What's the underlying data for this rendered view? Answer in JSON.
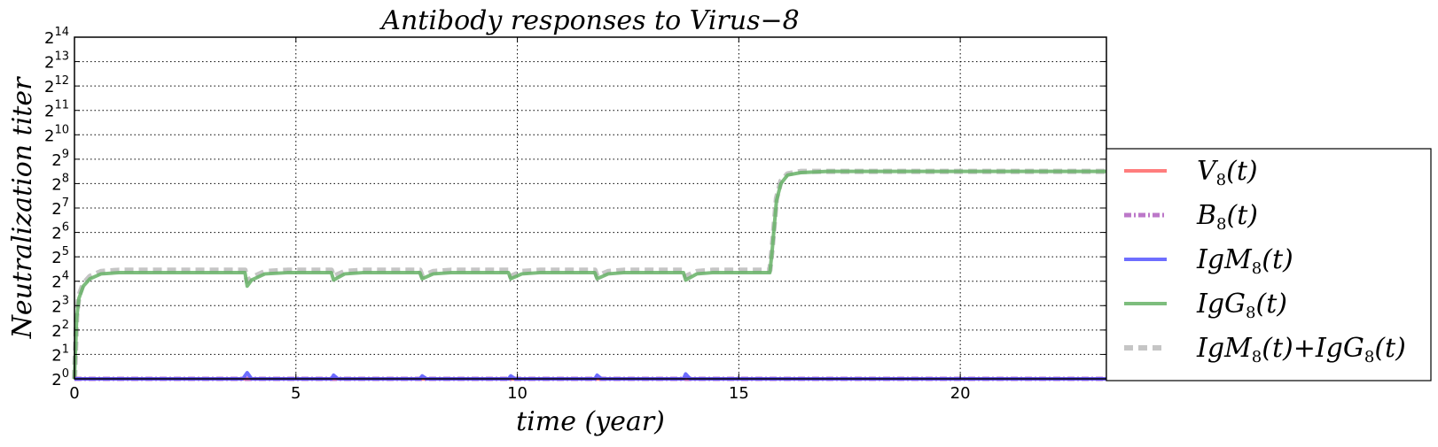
{
  "chart_data": {
    "type": "line",
    "title": "Antibody responses to Virus−8",
    "xlabel": "time (year)",
    "ylabel": "Neutralization  titer",
    "x_range": [
      0,
      23.3
    ],
    "y_scale": "log2",
    "y_range_exponent": [
      0,
      14
    ],
    "x_ticks": [
      "0",
      "5",
      "10",
      "15",
      "20"
    ],
    "y_ticks": [
      "2^0",
      "2^1",
      "2^2",
      "2^3",
      "2^4",
      "2^5",
      "2^6",
      "2^7",
      "2^8",
      "2^9",
      "2^10",
      "2^11",
      "2^12",
      "2^13",
      "2^14"
    ],
    "grid": true,
    "legend_position": "right, outside plot",
    "series": [
      {
        "name": "V8(t)",
        "color": "#ff6666",
        "style": "solid",
        "points_log2": [
          [
            0,
            0
          ],
          [
            23.3,
            0
          ]
        ]
      },
      {
        "name": "B8(t)",
        "color": "#b060c0",
        "style": "dashdot",
        "points_log2": [
          [
            0,
            0
          ],
          [
            23.3,
            0
          ]
        ]
      },
      {
        "name": "IgM8(t)",
        "color": "#5555ff",
        "style": "solid",
        "points_log2": [
          [
            0,
            0
          ],
          [
            3.8,
            0
          ],
          [
            3.9,
            0.25
          ],
          [
            4.0,
            0
          ],
          [
            5.8,
            0
          ],
          [
            5.85,
            0.15
          ],
          [
            5.95,
            0
          ],
          [
            7.8,
            0
          ],
          [
            7.85,
            0.12
          ],
          [
            7.95,
            0
          ],
          [
            9.8,
            0
          ],
          [
            9.85,
            0.12
          ],
          [
            9.95,
            0
          ],
          [
            11.75,
            0
          ],
          [
            11.8,
            0.15
          ],
          [
            11.9,
            0
          ],
          [
            13.75,
            0
          ],
          [
            13.8,
            0.2
          ],
          [
            13.9,
            0
          ],
          [
            23.3,
            0
          ]
        ]
      },
      {
        "name": "IgG8(t)",
        "color": "#66b266",
        "style": "solid",
        "points_log2": [
          [
            0,
            0
          ],
          [
            0.05,
            2.5
          ],
          [
            0.1,
            3.3
          ],
          [
            0.2,
            3.8
          ],
          [
            0.35,
            4.1
          ],
          [
            0.6,
            4.3
          ],
          [
            1,
            4.35
          ],
          [
            3.85,
            4.35
          ],
          [
            3.9,
            3.8
          ],
          [
            4.0,
            4.05
          ],
          [
            4.3,
            4.3
          ],
          [
            4.8,
            4.35
          ],
          [
            5.8,
            4.35
          ],
          [
            5.85,
            4.05
          ],
          [
            6.1,
            4.3
          ],
          [
            6.5,
            4.35
          ],
          [
            7.8,
            4.35
          ],
          [
            7.85,
            4.1
          ],
          [
            8.1,
            4.3
          ],
          [
            8.5,
            4.35
          ],
          [
            9.8,
            4.35
          ],
          [
            9.85,
            4.1
          ],
          [
            10.1,
            4.3
          ],
          [
            10.5,
            4.35
          ],
          [
            11.75,
            4.35
          ],
          [
            11.8,
            4.1
          ],
          [
            12.05,
            4.3
          ],
          [
            12.4,
            4.35
          ],
          [
            13.75,
            4.35
          ],
          [
            13.8,
            4.05
          ],
          [
            14.05,
            4.3
          ],
          [
            14.4,
            4.35
          ],
          [
            15.7,
            4.35
          ],
          [
            15.75,
            5.2
          ],
          [
            15.85,
            7.3
          ],
          [
            15.95,
            8.0
          ],
          [
            16.1,
            8.35
          ],
          [
            16.4,
            8.45
          ],
          [
            17,
            8.5
          ],
          [
            23.3,
            8.5
          ]
        ]
      },
      {
        "name": "IgM8(t)+IgG8(t)",
        "color": "#bbbbbb",
        "style": "dashed",
        "points_log2": [
          [
            0,
            0
          ],
          [
            0.05,
            2.6
          ],
          [
            0.1,
            3.4
          ],
          [
            0.2,
            3.9
          ],
          [
            0.35,
            4.2
          ],
          [
            0.6,
            4.4
          ],
          [
            1,
            4.45
          ],
          [
            3.85,
            4.45
          ],
          [
            3.9,
            4.0
          ],
          [
            4.0,
            4.15
          ],
          [
            4.3,
            4.4
          ],
          [
            4.8,
            4.45
          ],
          [
            5.8,
            4.45
          ],
          [
            5.85,
            4.2
          ],
          [
            6.1,
            4.4
          ],
          [
            6.5,
            4.45
          ],
          [
            7.8,
            4.45
          ],
          [
            7.85,
            4.2
          ],
          [
            8.1,
            4.4
          ],
          [
            8.5,
            4.45
          ],
          [
            9.8,
            4.45
          ],
          [
            9.85,
            4.2
          ],
          [
            10.1,
            4.4
          ],
          [
            10.5,
            4.45
          ],
          [
            11.75,
            4.45
          ],
          [
            11.8,
            4.2
          ],
          [
            12.05,
            4.4
          ],
          [
            12.4,
            4.45
          ],
          [
            13.75,
            4.45
          ],
          [
            13.8,
            4.2
          ],
          [
            14.05,
            4.4
          ],
          [
            14.4,
            4.45
          ],
          [
            15.7,
            4.45
          ],
          [
            15.75,
            5.3
          ],
          [
            15.85,
            7.4
          ],
          [
            15.95,
            8.1
          ],
          [
            16.1,
            8.4
          ],
          [
            16.4,
            8.5
          ],
          [
            17,
            8.5
          ],
          [
            23.3,
            8.5
          ]
        ]
      }
    ]
  },
  "legend": {
    "items": [
      {
        "base": "V",
        "sub": "8",
        "tail": "(t)"
      },
      {
        "base": "B",
        "sub": "8",
        "tail": "(t)"
      },
      {
        "base": "IgM",
        "sub": "8",
        "tail": "(t)"
      },
      {
        "base": "IgG",
        "sub": "8",
        "tail": "(t)"
      },
      {
        "base": "IgM",
        "sub": "8",
        "tail": "(t)+IgG",
        "sub2": "8",
        "tail2": "(t)"
      }
    ]
  }
}
